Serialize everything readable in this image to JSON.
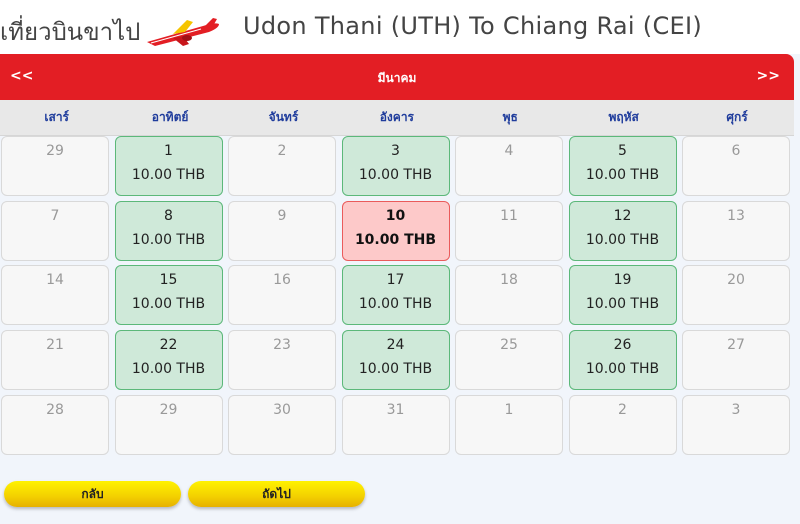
{
  "header": {
    "trip_label": "เที่ยวบินขาไป",
    "route": "Udon Thani (UTH) To Chiang Rai (CEI)",
    "logo_icon": "airplane-icon"
  },
  "calendar": {
    "prev_label": "<<",
    "next_label": ">>",
    "month": "มีนาคม",
    "weekdays": [
      "เสาร์",
      "อาทิตย์",
      "จันทร์",
      "อังคาร",
      "พุธ",
      "พฤหัส",
      "ศุกร์"
    ],
    "weeks": [
      [
        {
          "day": "29"
        },
        {
          "day": "1",
          "price": "10.00 THB"
        },
        {
          "day": "2"
        },
        {
          "day": "3",
          "price": "10.00 THB"
        },
        {
          "day": "4"
        },
        {
          "day": "5",
          "price": "10.00 THB"
        },
        {
          "day": "6"
        }
      ],
      [
        {
          "day": "7"
        },
        {
          "day": "8",
          "price": "10.00 THB"
        },
        {
          "day": "9"
        },
        {
          "day": "10",
          "price": "10.00 THB",
          "selected": true
        },
        {
          "day": "11"
        },
        {
          "day": "12",
          "price": "10.00 THB"
        },
        {
          "day": "13"
        }
      ],
      [
        {
          "day": "14"
        },
        {
          "day": "15",
          "price": "10.00 THB"
        },
        {
          "day": "16"
        },
        {
          "day": "17",
          "price": "10.00 THB"
        },
        {
          "day": "18"
        },
        {
          "day": "19",
          "price": "10.00 THB"
        },
        {
          "day": "20"
        }
      ],
      [
        {
          "day": "21"
        },
        {
          "day": "22",
          "price": "10.00 THB"
        },
        {
          "day": "23"
        },
        {
          "day": "24",
          "price": "10.00 THB"
        },
        {
          "day": "25"
        },
        {
          "day": "26",
          "price": "10.00 THB"
        },
        {
          "day": "27"
        }
      ],
      [
        {
          "day": "28"
        },
        {
          "day": "29"
        },
        {
          "day": "30"
        },
        {
          "day": "31"
        },
        {
          "day": "1"
        },
        {
          "day": "2"
        },
        {
          "day": "3"
        }
      ]
    ]
  },
  "buttons": {
    "back": "กลับ",
    "next": "ถัดไป"
  },
  "colors": {
    "accent": "#e31e24",
    "available": "#cfe9d9",
    "selected": "#fdc9c9",
    "button": "#fff200"
  }
}
